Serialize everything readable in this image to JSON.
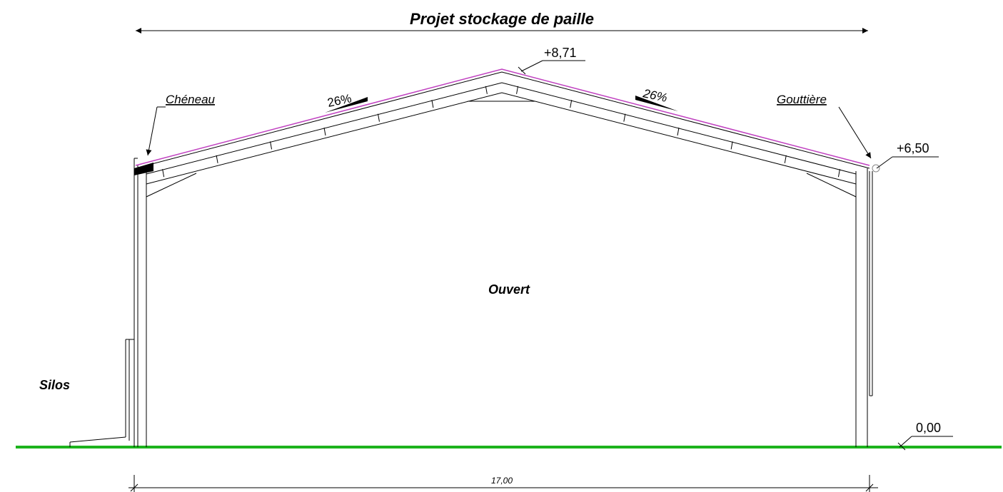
{
  "title": "Projet stockage de paille",
  "labels": {
    "ridge_level": "+8,71",
    "eave_level": "+6,50",
    "ground_level": "0,00",
    "left_slope": "26%",
    "right_slope": "26%",
    "gutter_left": "Chéneau",
    "gutter_right": "Gouttière",
    "interior": "Ouvert",
    "neighbor": "Silos",
    "span": "17,00"
  }
}
